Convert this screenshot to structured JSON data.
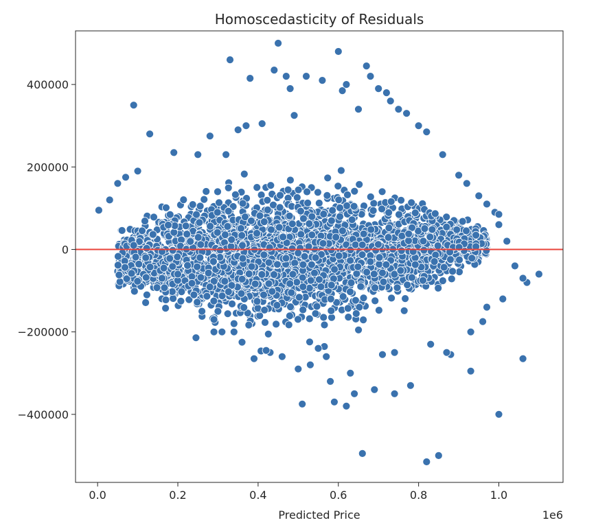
{
  "chart_data": {
    "type": "scatter",
    "title": "Homoscedasticity of Residuals",
    "xlabel": "Predicted Price",
    "ylabel": "",
    "x_offset_text": "1e6",
    "x_scale_factor": 1000000,
    "xlim": [
      -0.055,
      1.16
    ],
    "ylim": [
      -565000,
      530000
    ],
    "xticks": [
      0.0,
      0.2,
      0.4,
      0.6,
      0.8,
      1.0
    ],
    "xtick_labels": [
      "0.0",
      "0.2",
      "0.4",
      "0.6",
      "0.8",
      "1.0"
    ],
    "yticks": [
      -400000,
      -200000,
      0,
      200000,
      400000
    ],
    "ytick_labels": [
      "−400000",
      "−200000",
      "0",
      "200000",
      "400000"
    ],
    "grid": false,
    "reference_line": {
      "y": 0,
      "color": "#e8433a"
    },
    "point_color": "#3a72ae",
    "point_edge_color": "#ffffff",
    "cloud_note": "dense cloud of several thousand points",
    "series": [
      {
        "x": [
          0.003,
          0.03,
          0.05,
          0.07,
          0.09,
          0.1,
          0.13,
          0.19,
          0.25,
          0.28,
          0.32,
          0.33,
          0.35,
          0.37,
          0.38,
          0.41,
          0.44,
          0.45,
          0.47,
          0.48,
          0.49,
          0.52,
          0.56,
          0.6,
          0.61,
          0.62,
          0.65,
          0.67,
          0.68,
          0.7,
          0.72,
          0.73,
          0.75,
          0.77,
          0.8,
          0.82,
          0.86,
          0.9,
          0.92,
          0.95,
          0.97,
          0.99,
          1.0,
          1.0,
          1.02,
          1.04,
          1.07,
          1.1,
          0.09,
          0.12,
          0.2,
          0.26,
          0.29,
          0.3,
          0.34,
          0.39,
          0.43,
          0.5,
          0.53,
          0.58,
          0.62,
          0.64,
          0.69,
          0.74,
          0.78,
          0.88,
          0.93,
          0.96,
          1.01,
          1.06,
          0.51,
          0.59,
          0.66,
          0.82,
          0.85,
          1.0,
          1.06,
          0.93,
          0.97,
          0.83,
          0.87,
          0.74,
          0.71,
          0.63,
          0.57,
          0.55,
          0.46,
          0.42,
          0.36,
          0.31,
          0.29,
          0.24,
          0.34
        ],
        "y": [
          95000,
          120000,
          160000,
          175000,
          350000,
          190000,
          280000,
          235000,
          230000,
          275000,
          230000,
          460000,
          290000,
          300000,
          415000,
          305000,
          435000,
          500000,
          420000,
          390000,
          325000,
          420000,
          410000,
          480000,
          385000,
          400000,
          340000,
          445000,
          420000,
          390000,
          380000,
          360000,
          340000,
          330000,
          300000,
          285000,
          230000,
          180000,
          160000,
          130000,
          110000,
          90000,
          85000,
          60000,
          20000,
          -40000,
          -80000,
          -60000,
          10000,
          -20000,
          -60000,
          -150000,
          -200000,
          -150000,
          -200000,
          -265000,
          -250000,
          -290000,
          -280000,
          -320000,
          -380000,
          -350000,
          -340000,
          -350000,
          -330000,
          -255000,
          -200000,
          -175000,
          -120000,
          -70000,
          -375000,
          -370000,
          -495000,
          -515000,
          -500000,
          -400000,
          -265000,
          -295000,
          -140000,
          -230000,
          -250000,
          -250000,
          -255000,
          -300000,
          -260000,
          -240000,
          -260000,
          -245000,
          -225000,
          -200000,
          -170000,
          -110000,
          -180000
        ]
      }
    ]
  }
}
